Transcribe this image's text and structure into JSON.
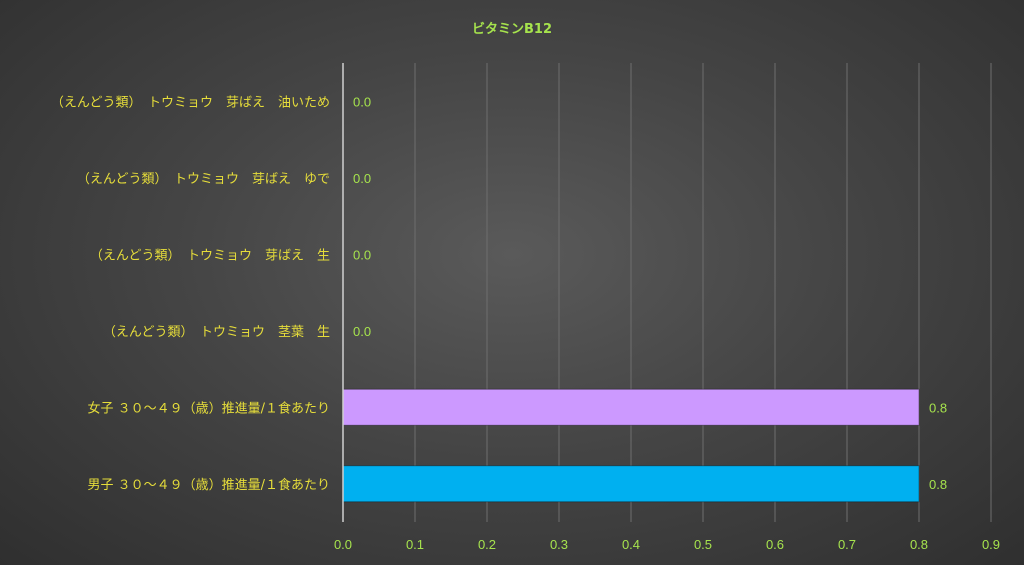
{
  "chart_data": {
    "type": "bar",
    "orientation": "horizontal",
    "title": "ビタミンB12",
    "categories": [
      "（えんどう類）　トウミョウ　芽ばえ　油いため",
      "（えんどう類）　トウミョウ　芽ばえ　ゆで",
      "（えんどう類）　トウミョウ　芽ばえ　生",
      "（えんどう類）　トウミョウ　茎葉　生",
      "女子 ３０～４９（歳）推進量/１食あたり",
      "男子 ３０～４９（歳）推進量/１食あたり"
    ],
    "values": [
      0.0,
      0.0,
      0.0,
      0.0,
      0.8,
      0.8
    ],
    "data_labels": [
      "0.0",
      "0.0",
      "0.0",
      "0.0",
      "0.8",
      "0.8"
    ],
    "bar_colors": [
      "#cc99ff",
      "#cc99ff",
      "#cc99ff",
      "#cc99ff",
      "#cc99ff",
      "#00b0f0"
    ],
    "xlim": [
      0,
      0.9
    ],
    "x_ticks": [
      "0.0",
      "0.1",
      "0.2",
      "0.3",
      "0.4",
      "0.5",
      "0.6",
      "0.7",
      "0.8",
      "0.9"
    ],
    "xlabel": "",
    "ylabel": "",
    "grid": "vertical",
    "legend": "none"
  },
  "colors": {
    "title": "#a6e34d",
    "category_text": "#e6dd3a",
    "tick_text": "#a6e34d",
    "data_label_text": "#a6e34d",
    "gridline": "#6e6e6e",
    "axis": "#d0d0d0"
  }
}
